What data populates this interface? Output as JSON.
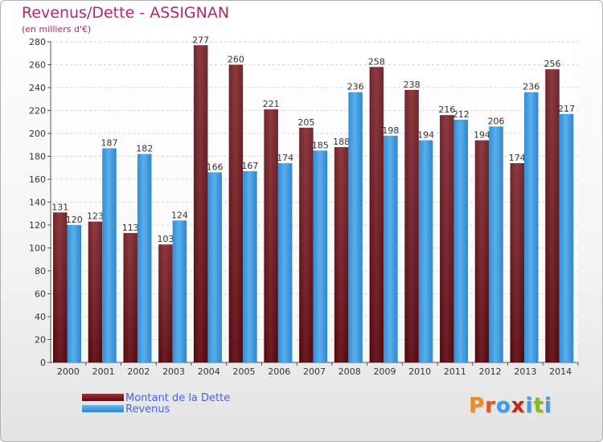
{
  "header": {
    "title": "Revenus/Dette - ASSIGNAN",
    "subtitle": "(en milliers d'€)"
  },
  "legend": {
    "dette_label": "Montant de la Dette",
    "revenus_label": "Revenus"
  },
  "logo": {
    "letters": [
      "P",
      "r",
      "o",
      "x",
      "i",
      "t",
      "i"
    ]
  },
  "colors": {
    "dette": "#7a1a1e",
    "revenus": "#3a9be0",
    "title": "#b5286b",
    "legend_text": "#4a63d8",
    "logo": [
      "#f08c1c",
      "#e8541e",
      "#3c9ee0",
      "#c82418",
      "#3c9ee0",
      "#88b825",
      "#3c9ee0"
    ]
  },
  "chart_data": {
    "type": "bar",
    "title": "Revenus/Dette - ASSIGNAN",
    "subtitle": "(en milliers d'€)",
    "xlabel": "",
    "ylabel": "",
    "ylim": [
      0,
      280
    ],
    "ytick_step": 20,
    "grid": true,
    "legend_position": "bottom-left",
    "categories": [
      "2000",
      "2001",
      "2002",
      "2003",
      "2004",
      "2005",
      "2006",
      "2007",
      "2008",
      "2009",
      "2010",
      "2011",
      "2012",
      "2013",
      "2014"
    ],
    "series": [
      {
        "name": "Montant de la Dette",
        "values": [
          131,
          123,
          113,
          103,
          277,
          260,
          221,
          205,
          188,
          258,
          238,
          216,
          194,
          174,
          256
        ]
      },
      {
        "name": "Revenus",
        "values": [
          120,
          187,
          182,
          124,
          166,
          167,
          174,
          185,
          236,
          198,
          194,
          212,
          206,
          236,
          217
        ]
      }
    ]
  }
}
